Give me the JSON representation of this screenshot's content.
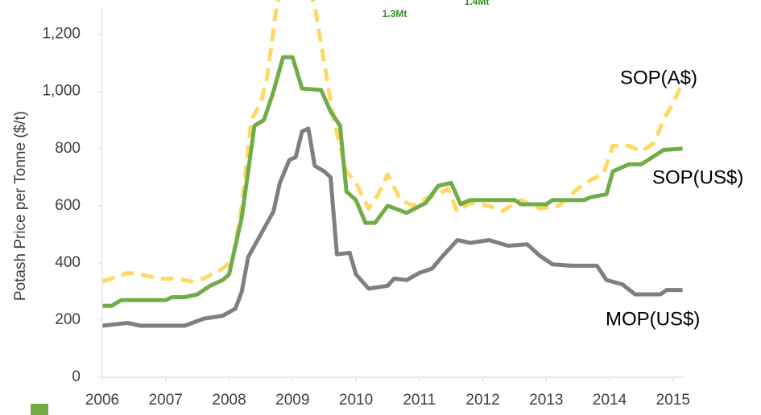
{
  "chart_data": {
    "type": "line",
    "y_label": "Potash Price per Tonne ($/t)",
    "annotations": [
      "1.3Mt",
      "1.4Mt"
    ],
    "xlim": [
      2006,
      2015.18
    ],
    "xticks": [
      2006,
      2007,
      2008,
      2009,
      2010,
      2011,
      2012,
      2013,
      2014,
      2015
    ],
    "ylim": [
      0,
      1320
    ],
    "yticks": [
      0,
      200,
      400,
      600,
      800,
      {
        "value": 1000,
        "label": "1,000"
      },
      {
        "value": 1200,
        "label": "1,200"
      }
    ],
    "grid": false,
    "series": [
      {
        "name": "SOP(A$)",
        "color": "#ffd966",
        "dash": true,
        "x": [
          2006,
          2006.4,
          2006.6,
          2006.9,
          2007.2,
          2007.4,
          2007.6,
          2007.9,
          2008.05,
          2008.2,
          2008.35,
          2008.5,
          2008.6,
          2008.75,
          2008.85,
          2009.2,
          2009.35,
          2009.5,
          2009.65,
          2009.85,
          2010,
          2010.2,
          2010.35,
          2010.5,
          2010.7,
          2010.9,
          2011.1,
          2011.3,
          2011.45,
          2011.6,
          2011.8,
          2012.1,
          2012.3,
          2012.6,
          2012.9,
          2013.2,
          2013.5,
          2013.7,
          2013.9,
          2014.05,
          2014.3,
          2014.5,
          2014.7,
          2014.85,
          2015,
          2015.15
        ],
        "values": [
          335,
          365,
          360,
          345,
          345,
          335,
          345,
          380,
          410,
          600,
          900,
          960,
          1050,
          1300,
          1400,
          1400,
          1300,
          1100,
          900,
          720,
          680,
          590,
          640,
          710,
          620,
          600,
          625,
          640,
          660,
          580,
          610,
          600,
          580,
          620,
          590,
          600,
          660,
          690,
          710,
          810,
          810,
          790,
          820,
          900,
          960,
          1030
        ]
      },
      {
        "name": "SOP(US$)",
        "color": "#70ad47",
        "dash": false,
        "x": [
          2006,
          2006.15,
          2006.3,
          2007,
          2007.1,
          2007.3,
          2007.5,
          2007.7,
          2007.9,
          2008,
          2008.2,
          2008.4,
          2008.55,
          2008.7,
          2008.85,
          2009,
          2009.15,
          2009.45,
          2009.6,
          2009.75,
          2009.85,
          2010,
          2010.15,
          2010.3,
          2010.5,
          2010.8,
          2011.1,
          2011.3,
          2011.5,
          2011.65,
          2011.8,
          2012.5,
          2012.6,
          2013,
          2013.1,
          2013.6,
          2013.7,
          2013.95,
          2014.05,
          2014.3,
          2014.5,
          2014.85,
          2015.15
        ],
        "values": [
          250,
          250,
          270,
          270,
          280,
          280,
          290,
          320,
          340,
          360,
          560,
          880,
          900,
          1000,
          1120,
          1120,
          1010,
          1005,
          930,
          880,
          650,
          620,
          540,
          540,
          600,
          575,
          610,
          670,
          680,
          605,
          620,
          620,
          605,
          605,
          620,
          620,
          630,
          640,
          720,
          745,
          745,
          795,
          800
        ]
      },
      {
        "name": "MOP(US$)",
        "color": "#7f7f7f",
        "dash": false,
        "x": [
          2006,
          2006.4,
          2006.6,
          2007.3,
          2007.6,
          2007.9,
          2008.1,
          2008.2,
          2008.3,
          2008.5,
          2008.7,
          2008.8,
          2008.95,
          2009.05,
          2009.15,
          2009.25,
          2009.35,
          2009.5,
          2009.6,
          2009.7,
          2009.9,
          2010,
          2010.2,
          2010.5,
          2010.6,
          2010.8,
          2011,
          2011.2,
          2011.35,
          2011.6,
          2011.8,
          2012.1,
          2012.4,
          2012.7,
          2012.9,
          2013.1,
          2013.4,
          2013.8,
          2013.95,
          2014.2,
          2014.4,
          2014.8,
          2014.9,
          2015.15
        ],
        "values": [
          180,
          190,
          180,
          180,
          205,
          215,
          240,
          300,
          420,
          500,
          580,
          680,
          760,
          770,
          860,
          870,
          740,
          720,
          700,
          430,
          435,
          360,
          310,
          320,
          345,
          340,
          365,
          380,
          420,
          480,
          470,
          480,
          460,
          465,
          425,
          395,
          390,
          390,
          340,
          325,
          290,
          290,
          305,
          305
        ]
      }
    ]
  }
}
